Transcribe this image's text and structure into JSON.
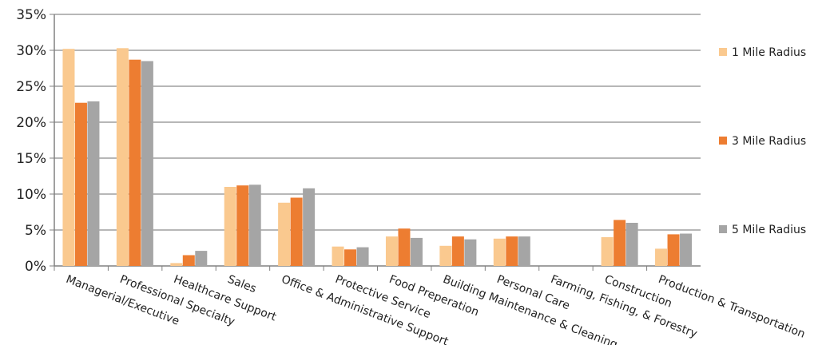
{
  "chart_data": {
    "type": "bar",
    "title": "",
    "xlabel": "",
    "ylabel": "",
    "ylim": [
      0,
      35
    ],
    "y_tick_labels": [
      "0%",
      "5%",
      "10%",
      "15%",
      "20%",
      "25%",
      "30%",
      "35%"
    ],
    "y_ticks": [
      0,
      5,
      10,
      15,
      20,
      25,
      30,
      35
    ],
    "grid": true,
    "legend_position": "right",
    "categories": [
      "Managerial/Executive",
      "Professional Specialty",
      "Healthcare Support",
      "Sales",
      "Office & Administrative Support",
      "Protective Service",
      "Food Preperation",
      "Building Maintenance & Cleaning",
      "Personal Care",
      "Farming, Fishing, & Forestry",
      "Construction",
      "Production & Transportation"
    ],
    "series": [
      {
        "name": "1 Mile Radius",
        "color": "#FAC98F",
        "values": [
          30.2,
          30.3,
          0.4,
          11.0,
          8.8,
          2.7,
          4.1,
          2.8,
          3.8,
          0.0,
          4.0,
          2.4
        ]
      },
      {
        "name": "3 Mile Radius",
        "color": "#ED7D31",
        "values": [
          22.7,
          28.7,
          1.5,
          11.2,
          9.5,
          2.3,
          5.2,
          4.1,
          4.1,
          0.0,
          6.4,
          4.4
        ]
      },
      {
        "name": "5 Mile Radius",
        "color": "#A5A5A5",
        "values": [
          22.9,
          28.5,
          2.1,
          11.3,
          10.8,
          2.6,
          3.9,
          3.7,
          4.1,
          0.0,
          6.0,
          4.5
        ]
      }
    ]
  }
}
